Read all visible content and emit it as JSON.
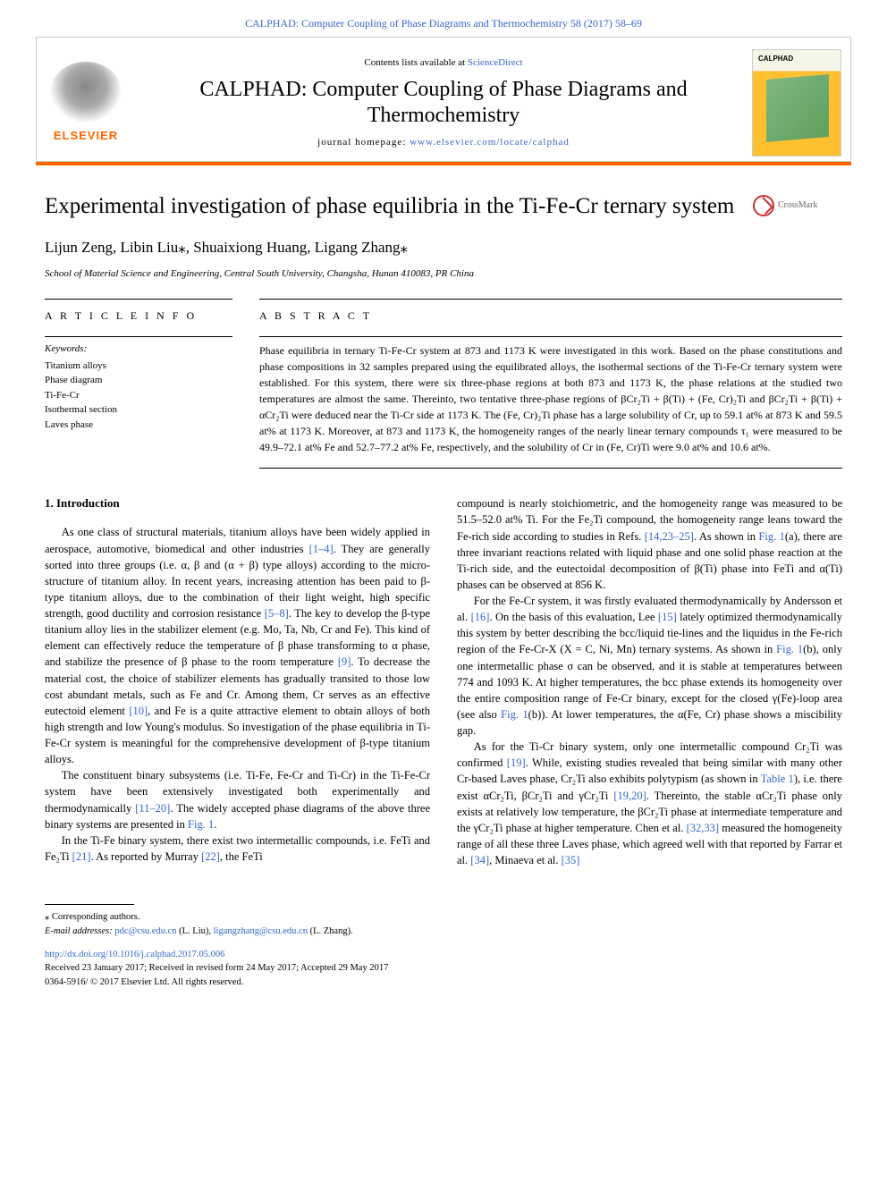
{
  "top_link": {
    "prefix": "CALPHAD: Computer Coupling of Phase Diagrams and Thermochemistry 58 (2017) 58–69"
  },
  "header": {
    "contents_prefix": "Contents lists available at ",
    "contents_link": "ScienceDirect",
    "journal_title": "CALPHAD: Computer Coupling of Phase Diagrams and Thermochemistry",
    "homepage_prefix": "journal homepage: ",
    "homepage_link": "www.elsevier.com/locate/calphad",
    "elsevier": "ELSEVIER",
    "crossmark": "CrossMark"
  },
  "article": {
    "title": "Experimental investigation of phase equilibria in the Ti-Fe-Cr ternary system",
    "authors": "Lijun Zeng, Libin Liu⁎, Shuaixiong Huang, Ligang Zhang⁎",
    "affiliation": "School of Material Science and Engineering, Central South University, Changsha, Hunan 410083, PR China"
  },
  "info": {
    "heading": "A R T I C L E  I N F O",
    "keywords_label": "Keywords:",
    "keywords": [
      "Titanium alloys",
      "Phase diagram",
      "Ti-Fe-Cr",
      "Isothermal section",
      "Laves phase"
    ]
  },
  "abstract": {
    "heading": "A B S T R A C T",
    "text": "Phase equilibria in ternary Ti-Fe-Cr system at 873 and 1173 K were investigated in this work. Based on the phase constitutions and phase compositions in 32 samples prepared using the equilibrated alloys, the isothermal sections of the Ti-Fe-Cr ternary system were established. For this system, there were six three-phase regions at both 873 and 1173 K, the phase relations at the studied two temperatures are almost the same. Thereinto, two tentative three-phase regions of βCr₂Ti + β(Ti) + (Fe, Cr)₂Ti and βCr₂Ti + β(Ti) + αCr₂Ti were deduced near the Ti-Cr side at 1173 K. The (Fe, Cr)₂Ti phase has a large solubility of Cr, up to 59.1 at% at 873 K and 59.5 at% at 1173 K. Moreover, at 873 and 1173 K, the homogeneity ranges of the nearly linear ternary compounds τ₁ were measured to be 49.9–72.1 at% Fe and 52.7–77.2 at% Fe, respectively, and the solubility of Cr in (Fe, Cr)Ti were 9.0 at% and 10.6 at%."
  },
  "body": {
    "intro_heading": "1. Introduction",
    "col1": {
      "p1a": "As one class of structural materials, titanium alloys have been widely applied in aerospace, automotive, biomedical and other industries ",
      "p1_ref1": "[1–4]",
      "p1b": ". They are generally sorted into three groups (i.e. α, β and (α + β) type alloys) according to the micro-structure of titanium alloy. In recent years, increasing attention has been paid to β-type titanium alloys, due to the combination of their light weight, high specific strength, good ductility and corrosion resistance ",
      "p1_ref2": "[5–8]",
      "p1c": ". The key to develop the β-type titanium alloy lies in the stabilizer element (e.g. Mo, Ta, Nb, Cr and Fe). This kind of element can effectively reduce the temperature of β phase transforming to α phase, and stabilize the presence of β phase to the room temperature ",
      "p1_ref3": "[9]",
      "p1d": ". To decrease the material cost, the choice of stabilizer elements has gradually transited to those low cost abundant metals, such as Fe and Cr. Among them, Cr serves as an effective eutectoid element ",
      "p1_ref4": "[10]",
      "p1e": ", and Fe is a quite attractive element to obtain alloys of both high strength and low Young's modulus. So investigation of the phase equilibria in Ti-Fe-Cr system is meaningful for the comprehensive development of β-type titanium alloys.",
      "p2a": "The constituent binary subsystems (i.e. Ti-Fe, Fe-Cr and Ti-Cr) in the Ti-Fe-Cr system have been extensively investigated both experimentally and thermodynamically ",
      "p2_ref1": "[11–20]",
      "p2b": ". The widely accepted phase diagrams of the above three binary systems are presented in ",
      "p2_fig": "Fig. 1",
      "p2c": ".",
      "p3a": "In the Ti-Fe binary system, there exist two intermetallic compounds, i.e. FeTi and Fe₂Ti ",
      "p3_ref1": "[21]",
      "p3b": ". As reported by Murray ",
      "p3_ref2": "[22]",
      "p3c": ", the FeTi"
    },
    "col2": {
      "p1a": "compound is nearly stoichiometric, and the homogeneity range was measured to be 51.5–52.0 at% Ti. For the Fe₂Ti compound, the homogeneity range leans toward the Fe-rich side according to studies in Refs. ",
      "p1_ref1": "[14,23–25]",
      "p1b": ". As shown in ",
      "p1_fig1": "Fig. 1",
      "p1c": "(a), there are three invariant reactions related with liquid phase and one solid phase reaction at the Ti-rich side, and the eutectoidal decomposition of β(Ti) phase into FeTi and α(Ti) phases can be observed at 856 K.",
      "p2a": "For the Fe-Cr system, it was firstly evaluated thermodynamically by Andersson et al. ",
      "p2_ref1": "[16]",
      "p2b": ". On the basis of this evaluation, Lee ",
      "p2_ref2": "[15]",
      "p2c": " lately optimized thermodynamically this system by better describing the bcc/liquid tie-lines and the liquidus in the Fe-rich region of the Fe-Cr-X (X = C, Ni, Mn) ternary systems. As shown in ",
      "p2_fig": "Fig. 1",
      "p2d": "(b), only one intermetallic phase σ can be observed, and it is stable at temperatures between 774 and 1093 K. At higher temperatures, the bcc phase extends its homogeneity over the entire composition range of Fe-Cr binary, except for the closed γ(Fe)-loop area (see also ",
      "p2_fig2": "Fig. 1",
      "p2e": "(b)). At lower temperatures, the α(Fe, Cr) phase shows a miscibility gap.",
      "p3a": "As for the Ti-Cr binary system, only one intermetallic compound Cr₂Ti was confirmed ",
      "p3_ref1": "[19]",
      "p3b": ". While, existing studies revealed that being similar with many other Cr-based Laves phase, Cr₂Ti also exhibits polytypism (as shown in ",
      "p3_tab": "Table 1",
      "p3c": "), i.e. there exist αCr₂Ti, βCr₂Ti and γCr₂Ti ",
      "p3_ref2": "[19,20]",
      "p3d": ". Thereinto, the stable αCr₂Ti phase only exists at relatively low temperature, the βCr₂Ti phase at intermediate temperature and the γCr₂Ti phase at higher temperature. Chen et al. ",
      "p3_ref3": "[32,33]",
      "p3e": " measured the homogeneity range of all these three Laves phase, which agreed well with that reported by Farrar et al. ",
      "p3_ref4": "[34]",
      "p3f": ", Minaeva et al. ",
      "p3_ref5": "[35]"
    }
  },
  "footer": {
    "corr": "⁎ Corresponding authors.",
    "email_label": "E-mail addresses: ",
    "email1": "pdc@csu.edu.cn",
    "email1_name": " (L. Liu), ",
    "email2": "ligangzhang@csu.edu.cn",
    "email2_name": " (L. Zhang).",
    "doi": "http://dx.doi.org/10.1016/j.calphad.2017.05.006",
    "received": "Received 23 January 2017; Received in revised form 24 May 2017; Accepted 29 May 2017",
    "copyright": "0364-5916/ © 2017 Elsevier Ltd. All rights reserved."
  },
  "colors": {
    "link": "#3366cc",
    "accent": "#ff6600",
    "text": "#000000"
  }
}
